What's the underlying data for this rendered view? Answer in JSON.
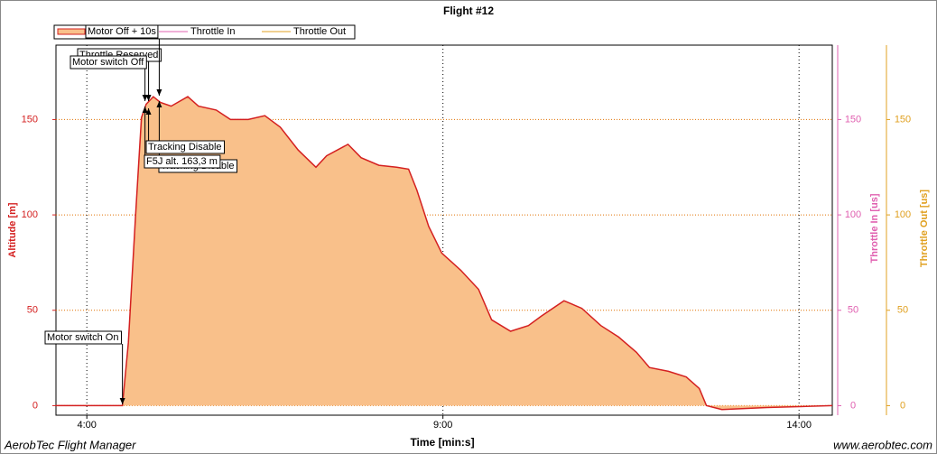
{
  "chart_data": {
    "type": "area",
    "title": "Flight #12",
    "xlabel": "Time [min:s]",
    "ylabel": "Altitude [m]",
    "y2label": "Throttle In [us]",
    "y3label": "Throttle Out [us]",
    "footer_left": "AerobTec Flight Manager",
    "footer_right": "www.aerobtec.com",
    "xlim": [
      214,
      868
    ],
    "xticks": [
      {
        "value": 240,
        "label": "4:00"
      },
      {
        "value": 540,
        "label": "9:00"
      },
      {
        "value": 840,
        "label": "14:00"
      }
    ],
    "ylim": [
      -5,
      189
    ],
    "yticks": [
      0,
      50,
      100,
      150
    ],
    "y2lim": [
      -5,
      189
    ],
    "y2ticks": [
      0,
      50,
      100,
      150
    ],
    "y3lim": [
      -5,
      189
    ],
    "y3ticks": [
      0,
      50,
      100,
      150
    ],
    "grid": true,
    "legend": "top-left",
    "x": [
      214,
      270,
      275,
      281,
      286,
      290,
      296,
      302,
      311,
      325,
      334,
      349,
      361,
      376,
      390,
      403,
      418,
      433,
      442,
      460,
      471,
      486,
      501,
      511,
      518,
      528,
      539,
      555,
      570,
      581,
      597,
      612,
      623,
      642,
      657,
      673,
      688,
      703,
      714,
      730,
      745,
      756,
      762,
      775,
      813,
      868
    ],
    "series": [
      {
        "name": "Motor Off + 10s",
        "color": "#d42020",
        "fill": "#f9c08a",
        "values": [
          0,
          0,
          33,
          99,
          151,
          158,
          162,
          159,
          157,
          162,
          157,
          155,
          150,
          150,
          152,
          146,
          134,
          125,
          131,
          137,
          130,
          126,
          125,
          124,
          113,
          94,
          80,
          71,
          61,
          45,
          39,
          42,
          47,
          55,
          51,
          42,
          36,
          28,
          20,
          18,
          15,
          9,
          0,
          -2,
          -1,
          0
        ]
      },
      {
        "name": "Throttle In",
        "color": "#e060b0",
        "axis": "y2"
      },
      {
        "name": "Throttle Out",
        "color": "#e0a020",
        "axis": "y3"
      }
    ],
    "annotations": [
      {
        "text": "Motor switch On",
        "x": 270
      },
      {
        "text": "Throttle Reserved",
        "x": 292
      },
      {
        "text": "Motor switch Off",
        "x": 289
      },
      {
        "text": "Tracking Disable",
        "x": 292
      },
      {
        "text": "F5J alt. 163,3 m",
        "x": 289
      },
      {
        "text": "Tracking Disable",
        "x": 301
      }
    ]
  }
}
